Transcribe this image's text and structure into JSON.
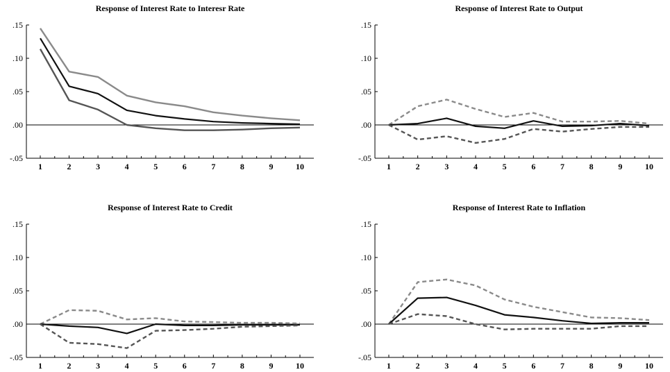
{
  "chart_data": [
    {
      "type": "line",
      "title": "Response of Interest Rate to Interesr Rate",
      "x": [
        1,
        2,
        3,
        4,
        5,
        6,
        7,
        8,
        9,
        10
      ],
      "ylim": [
        -0.05,
        0.15
      ],
      "yticks": [
        ".15",
        ".10",
        ".05",
        ".00",
        "-.05"
      ],
      "legend": "none",
      "series": [
        {
          "role": "upper",
          "style": "solid",
          "color": "#8a8a8a",
          "values": [
            0.145,
            0.08,
            0.072,
            0.044,
            0.034,
            0.028,
            0.019,
            0.014,
            0.01,
            0.007
          ]
        },
        {
          "role": "response",
          "style": "solid",
          "color": "#111111",
          "values": [
            0.13,
            0.058,
            0.047,
            0.022,
            0.014,
            0.009,
            0.005,
            0.003,
            0.002,
            0.001
          ]
        },
        {
          "role": "lower",
          "style": "solid",
          "color": "#555555",
          "values": [
            0.114,
            0.037,
            0.023,
            0.0,
            -0.005,
            -0.008,
            -0.008,
            -0.007,
            -0.005,
            -0.004
          ]
        }
      ]
    },
    {
      "type": "line",
      "title": "Response of Interest Rate to Output",
      "x": [
        1,
        2,
        3,
        4,
        5,
        6,
        7,
        8,
        9,
        10
      ],
      "ylim": [
        -0.05,
        0.15
      ],
      "yticks": [
        ".15",
        ".10",
        ".05",
        ".00",
        "-.05"
      ],
      "legend": "none",
      "series": [
        {
          "role": "upper",
          "style": "dashed",
          "color": "#8a8a8a",
          "values": [
            0.0,
            0.028,
            0.038,
            0.024,
            0.012,
            0.018,
            0.005,
            0.005,
            0.006,
            0.002
          ]
        },
        {
          "role": "response",
          "style": "solid",
          "color": "#111111",
          "values": [
            0.0,
            0.002,
            0.01,
            -0.002,
            -0.005,
            0.006,
            -0.002,
            -0.001,
            0.002,
            -0.001
          ]
        },
        {
          "role": "lower",
          "style": "dashed",
          "color": "#555555",
          "values": [
            0.0,
            -0.022,
            -0.017,
            -0.027,
            -0.021,
            -0.006,
            -0.01,
            -0.006,
            -0.003,
            -0.003
          ]
        }
      ]
    },
    {
      "type": "line",
      "title": "Response of Interest Rate to Credit",
      "x": [
        1,
        2,
        3,
        4,
        5,
        6,
        7,
        8,
        9,
        10
      ],
      "ylim": [
        -0.05,
        0.15
      ],
      "yticks": [
        ".15",
        ".10",
        ".05",
        ".00",
        "-.05"
      ],
      "legend": "none",
      "series": [
        {
          "role": "upper",
          "style": "dashed",
          "color": "#8a8a8a",
          "values": [
            0.0,
            0.021,
            0.02,
            0.007,
            0.009,
            0.004,
            0.003,
            0.002,
            0.002,
            0.001
          ]
        },
        {
          "role": "response",
          "style": "solid",
          "color": "#111111",
          "values": [
            0.0,
            -0.003,
            -0.005,
            -0.014,
            0.0,
            -0.002,
            -0.002,
            -0.001,
            -0.001,
            -0.001
          ]
        },
        {
          "role": "lower",
          "style": "dashed",
          "color": "#555555",
          "values": [
            0.0,
            -0.028,
            -0.03,
            -0.036,
            -0.01,
            -0.009,
            -0.007,
            -0.004,
            -0.003,
            -0.002
          ]
        }
      ]
    },
    {
      "type": "line",
      "title": "Response of Interest Rate to Inflation",
      "x": [
        1,
        2,
        3,
        4,
        5,
        6,
        7,
        8,
        9,
        10
      ],
      "ylim": [
        -0.05,
        0.15
      ],
      "yticks": [
        ".15",
        ".10",
        ".05",
        ".00",
        "-.05"
      ],
      "legend": "none",
      "series": [
        {
          "role": "upper",
          "style": "dashed",
          "color": "#8a8a8a",
          "values": [
            0.0,
            0.063,
            0.067,
            0.058,
            0.037,
            0.026,
            0.018,
            0.01,
            0.009,
            0.006
          ]
        },
        {
          "role": "response",
          "style": "solid",
          "color": "#111111",
          "values": [
            0.0,
            0.039,
            0.04,
            0.028,
            0.014,
            0.01,
            0.005,
            0.001,
            0.002,
            0.002
          ]
        },
        {
          "role": "lower",
          "style": "dashed",
          "color": "#555555",
          "values": [
            0.0,
            0.015,
            0.012,
            0.0,
            -0.008,
            -0.007,
            -0.007,
            -0.007,
            -0.003,
            -0.003
          ]
        }
      ]
    }
  ]
}
